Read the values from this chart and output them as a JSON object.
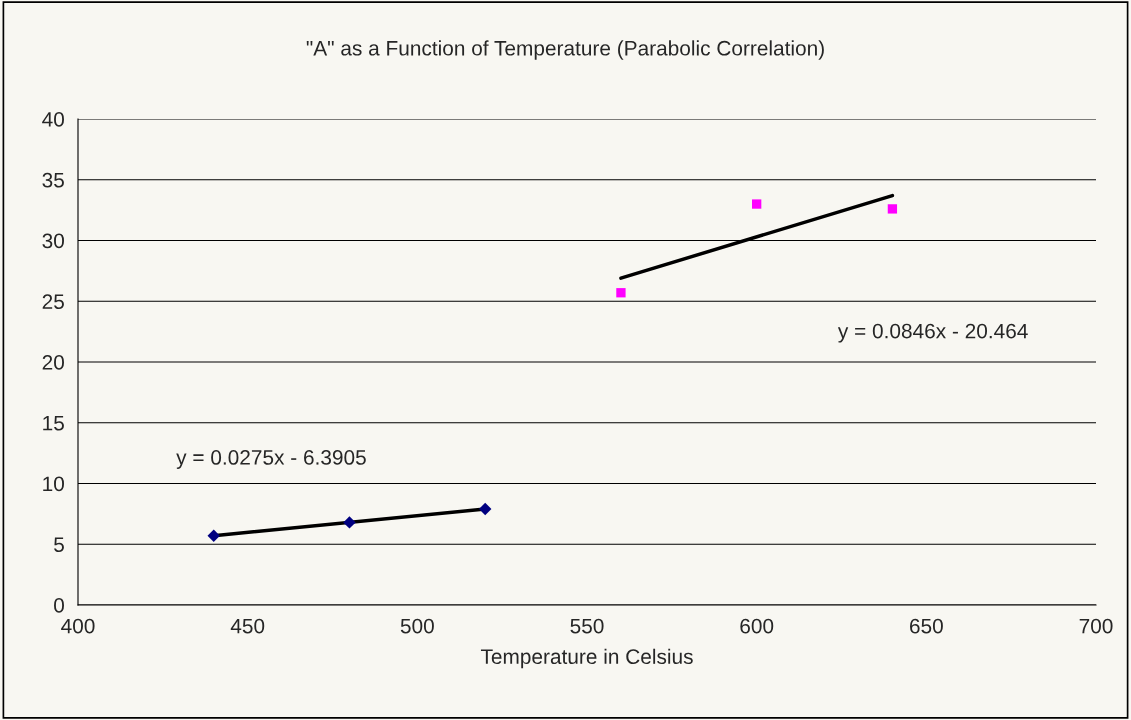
{
  "chart_data": {
    "type": "scatter",
    "title": "\"A\" as a Function of Temperature (Parabolic Correlation)",
    "xlabel": "Temperature in Celsius",
    "xlim": [
      400,
      700
    ],
    "xticks": [
      400,
      450,
      500,
      550,
      600,
      650,
      700
    ],
    "ylim": [
      0,
      40
    ],
    "yticks": [
      0,
      5,
      10,
      15,
      20,
      25,
      30,
      35,
      40
    ],
    "grid": "y",
    "series": [
      {
        "marker": "diamond",
        "color": "#000080",
        "x": [
          440,
          480,
          520
        ],
        "values": [
          5.7,
          6.8,
          7.9
        ]
      },
      {
        "marker": "square",
        "color": "#ff00ff",
        "x": [
          560,
          600,
          640
        ],
        "values": [
          25.7,
          33.0,
          32.6
        ]
      },
      {
        "type": "line",
        "marker": "none",
        "color": "#000000",
        "x": [
          440,
          520
        ],
        "values": [
          5.7,
          7.9
        ]
      },
      {
        "type": "line",
        "marker": "none",
        "color": "#000000",
        "x": [
          560,
          640
        ],
        "values": [
          26.9,
          33.7
        ]
      }
    ],
    "annotations": [
      "y = 0.0275x - 6.3905",
      "y = 0.0846x - 20.464"
    ]
  }
}
